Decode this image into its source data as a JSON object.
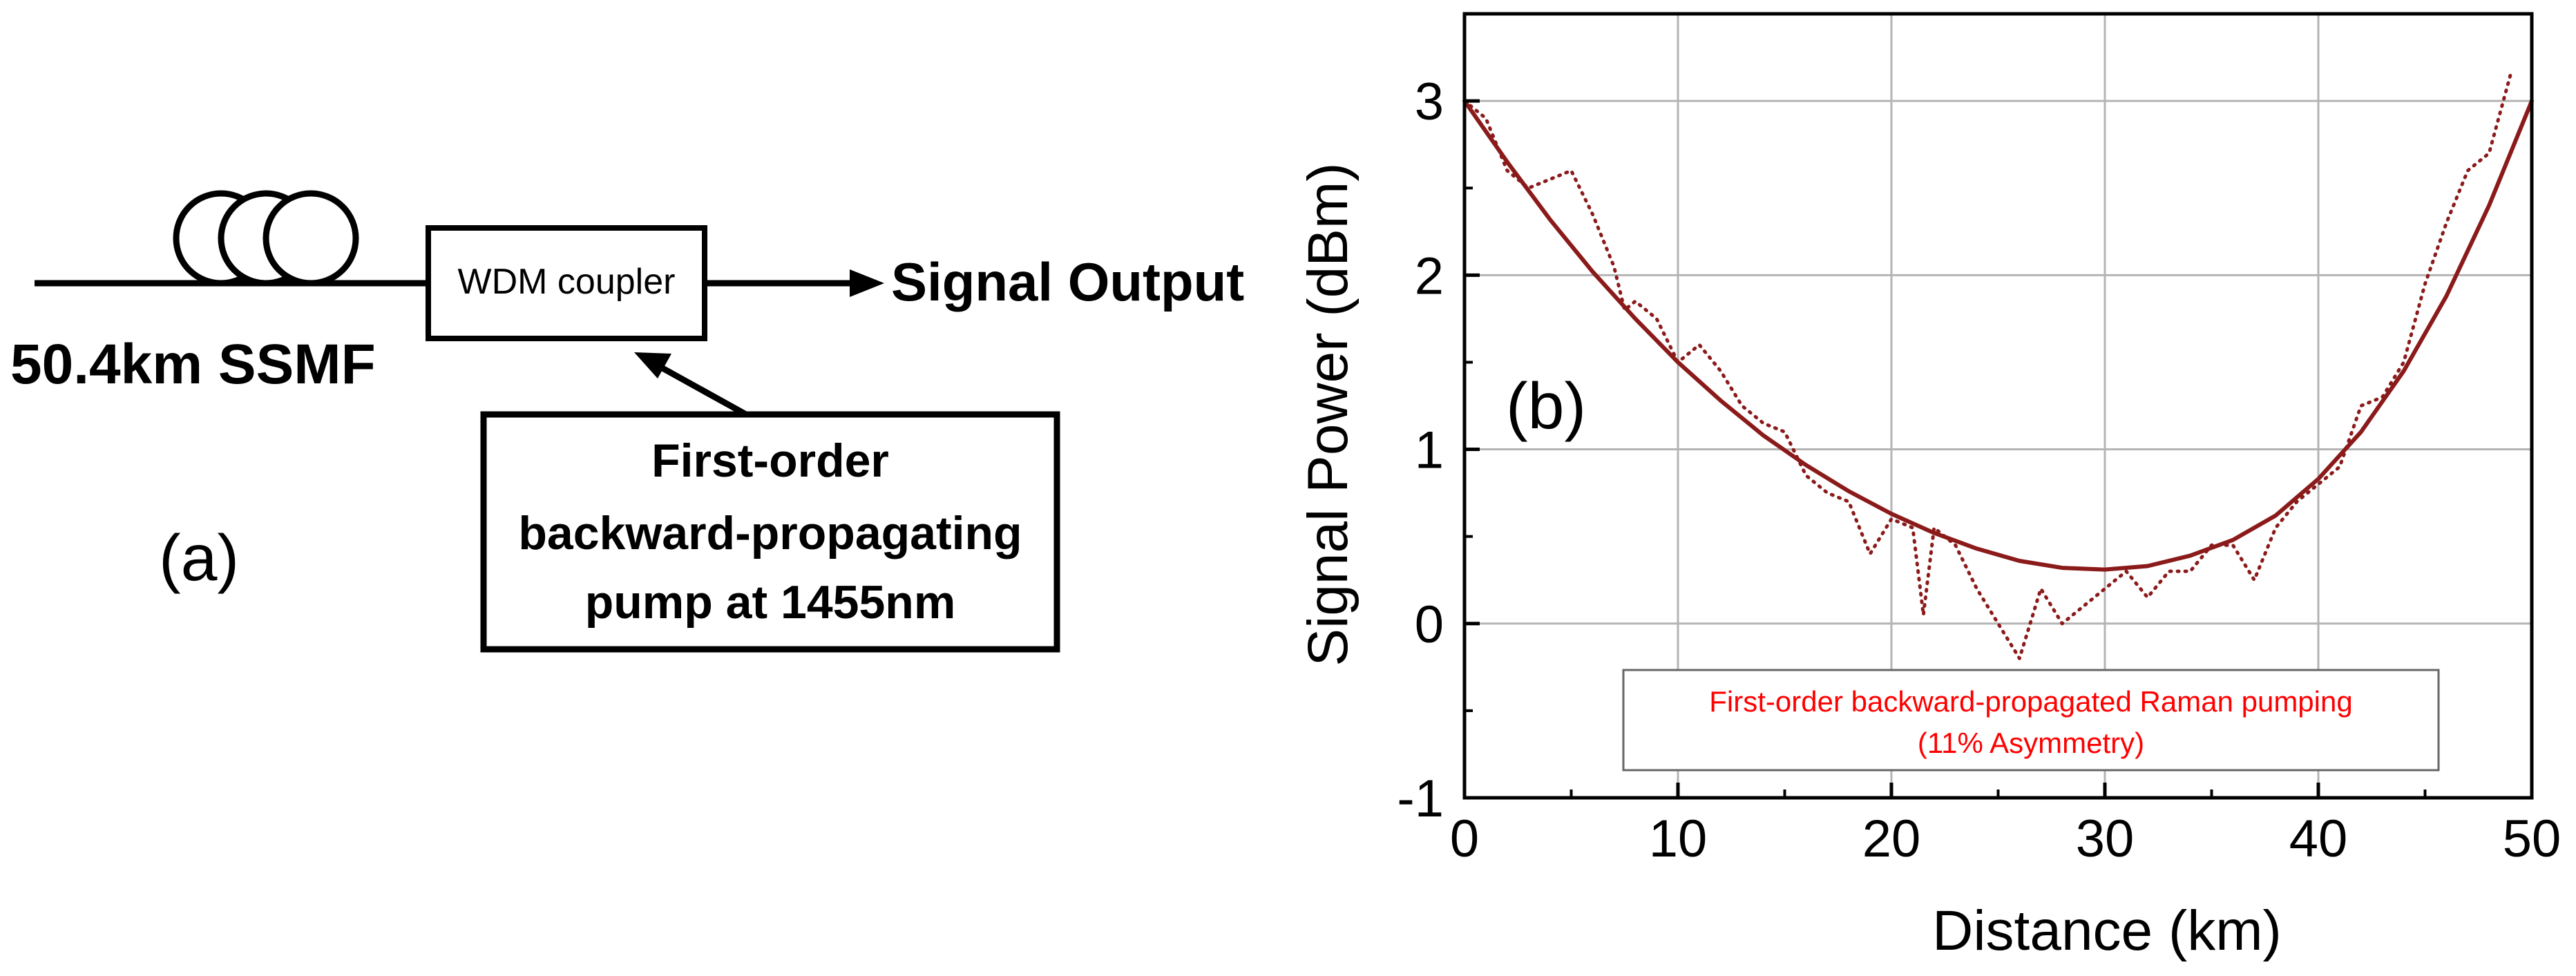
{
  "panel_a": {
    "fiber_label": "50.4km SSMF",
    "coupler_label": "WDM coupler",
    "output_label": "Signal Output",
    "pump_lines": [
      "First-order",
      "backward-propagating",
      "pump at 1455nm"
    ],
    "panel_label": "(a)",
    "icons": [
      "fiber-spool-icon",
      "arrow-right-icon",
      "arrow-up-icon"
    ]
  },
  "panel_b": {
    "panel_label": "(b)",
    "annotation_lines": [
      "First-order backward-propagated Raman pumping",
      "(11% Asymmetry)"
    ],
    "colors": {
      "curve": "#8b1a1a",
      "annotation_text": "#ff0000",
      "grid": "#b4b4b4",
      "axis": "#000000"
    }
  },
  "chart_data": {
    "type": "line",
    "title": "",
    "xlabel": "Distance (km)",
    "ylabel": "Signal Power (dBm)",
    "xlim": [
      0,
      50
    ],
    "ylim": [
      -1,
      3.5
    ],
    "xticks": [
      0,
      10,
      20,
      30,
      40,
      50
    ],
    "yticks": [
      -1,
      0,
      1,
      2,
      3
    ],
    "xtick_labels": [
      "0",
      "10",
      "20",
      "30",
      "40",
      "50"
    ],
    "ytick_labels": [
      "-1",
      "0",
      "1",
      "2",
      "3"
    ],
    "grid": true,
    "legend": "none",
    "series": [
      {
        "style": "solid",
        "x": [
          0,
          2,
          4,
          6,
          8,
          10,
          12,
          14,
          16,
          18,
          20,
          22,
          24,
          26,
          28,
          30,
          32,
          34,
          36,
          38,
          40,
          42,
          44,
          46,
          48,
          50
        ],
        "y": [
          3.0,
          2.65,
          2.32,
          2.02,
          1.75,
          1.5,
          1.28,
          1.08,
          0.91,
          0.76,
          0.63,
          0.52,
          0.43,
          0.36,
          0.32,
          0.31,
          0.33,
          0.39,
          0.48,
          0.62,
          0.83,
          1.1,
          1.45,
          1.88,
          2.4,
          3.0
        ]
      },
      {
        "style": "dotted",
        "x": [
          0,
          1,
          2,
          3,
          4,
          5,
          6,
          7,
          7.5,
          8,
          9,
          10,
          11,
          12,
          13,
          14,
          15,
          16,
          17,
          18,
          19,
          20,
          21,
          21.5,
          22,
          23,
          24,
          25,
          26,
          27,
          28,
          29,
          30,
          31,
          32,
          33,
          34,
          35,
          36,
          37,
          38,
          39,
          40,
          41,
          42,
          43,
          44,
          45,
          46,
          47,
          48,
          49
        ],
        "y": [
          3.0,
          2.9,
          2.6,
          2.5,
          2.55,
          2.6,
          2.35,
          2.05,
          1.8,
          1.85,
          1.75,
          1.5,
          1.6,
          1.45,
          1.25,
          1.15,
          1.1,
          0.85,
          0.75,
          0.7,
          0.4,
          0.6,
          0.55,
          0.05,
          0.55,
          0.45,
          0.2,
          0.0,
          -0.2,
          0.2,
          0.0,
          0.1,
          0.2,
          0.3,
          0.15,
          0.3,
          0.3,
          0.45,
          0.45,
          0.25,
          0.55,
          0.7,
          0.8,
          0.9,
          1.25,
          1.3,
          1.5,
          1.95,
          2.3,
          2.6,
          2.7,
          3.15
        ]
      }
    ]
  }
}
